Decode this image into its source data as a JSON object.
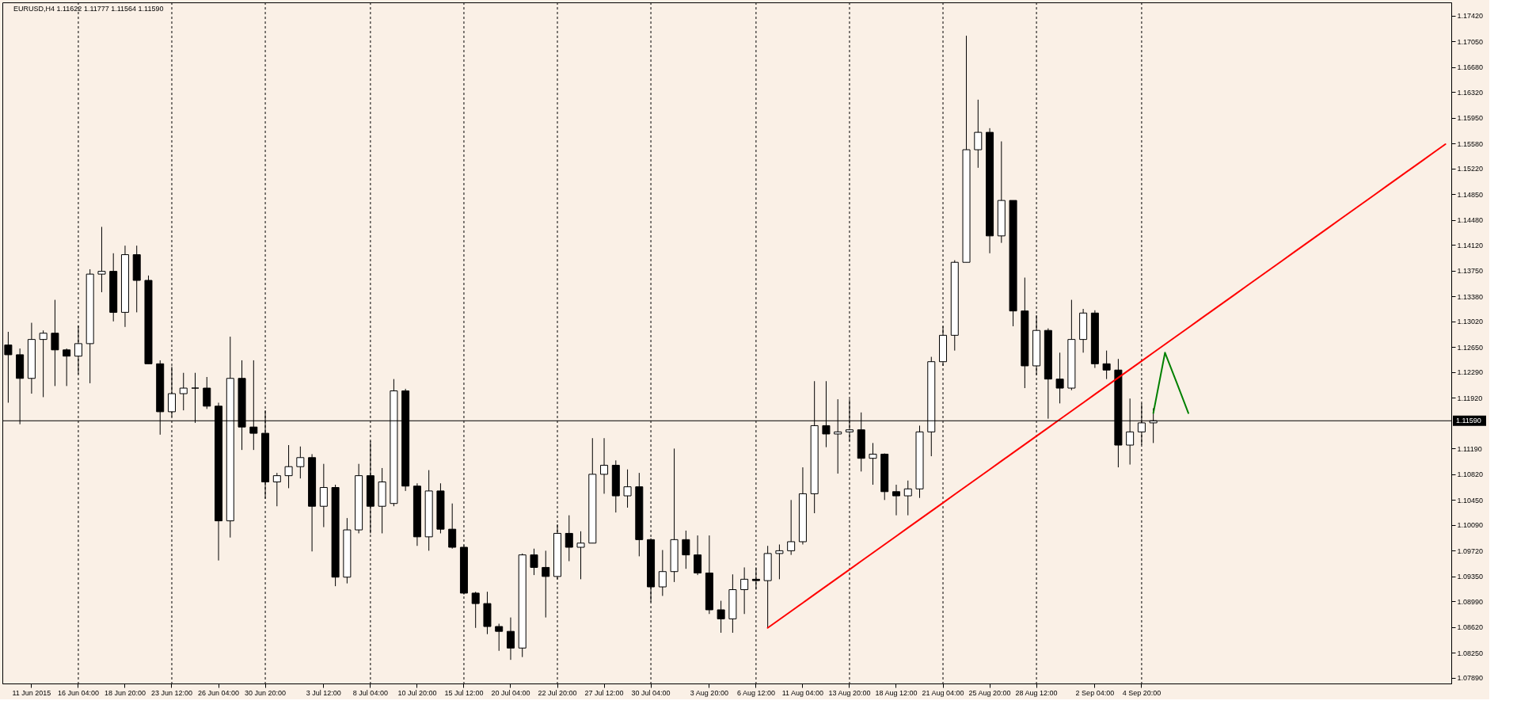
{
  "chart_data": {
    "type": "candlestick",
    "title": "EURUSD,H4  1.11622 1.11777 1.11564 1.11590",
    "categories": [
      null,
      null,
      "11 Jun 2015",
      null,
      null,
      null,
      "16 Jun 04:00",
      null,
      null,
      null,
      "18 Jun 20:00",
      null,
      null,
      null,
      "23 Jun 12:00",
      null,
      null,
      null,
      "26 Jun 04:00",
      null,
      null,
      null,
      "30 Jun 20:00",
      null,
      null,
      null,
      null,
      "3 Jul 12:00",
      null,
      null,
      null,
      "8 Jul 04:00",
      null,
      null,
      null,
      "10 Jul 20:00",
      null,
      null,
      null,
      "15 Jul 12:00",
      null,
      null,
      null,
      "20 Jul 04:00",
      null,
      null,
      null,
      "22 Jul 20:00",
      null,
      null,
      null,
      "27 Jul 12:00",
      null,
      null,
      null,
      "30 Jul 04:00",
      null,
      null,
      null,
      null,
      "3 Aug 20:00",
      null,
      null,
      null,
      "6 Aug 12:00",
      null,
      null,
      null,
      "11 Aug 04:00",
      null,
      null,
      null,
      "13 Aug 20:00",
      null,
      null,
      null,
      "18 Aug 12:00",
      null,
      null,
      null,
      "21 Aug 04:00",
      null,
      null,
      null,
      "25 Aug 20:00",
      null,
      null,
      null,
      "28 Aug 12:00",
      null,
      null,
      null,
      null,
      "2 Sep 04:00",
      null,
      null,
      null,
      "4 Sep 20:00",
      null,
      null,
      null,
      null,
      null,
      null,
      null,
      null,
      null,
      null,
      null,
      null,
      null,
      null,
      null,
      null,
      null,
      null,
      null,
      null,
      null,
      null,
      null,
      null,
      null,
      null
    ],
    "ohlc": [
      [
        1.1268,
        1.1287,
        1.1185,
        1.1254
      ],
      [
        1.1254,
        1.1263,
        1.1154,
        1.122
      ],
      [
        1.122,
        1.13,
        1.1198,
        1.1276
      ],
      [
        1.1276,
        1.1289,
        1.1193,
        1.1285
      ],
      [
        1.1285,
        1.1333,
        1.1209,
        1.1261
      ],
      [
        1.1261,
        1.1263,
        1.1209,
        1.1252
      ],
      [
        1.1252,
        1.1296,
        1.1226,
        1.127
      ],
      [
        1.127,
        1.1377,
        1.1213,
        1.137
      ],
      [
        1.137,
        1.1438,
        1.1344,
        1.1374
      ],
      [
        1.1374,
        1.14,
        1.1302,
        1.1315
      ],
      [
        1.1315,
        1.1411,
        1.1294,
        1.1398
      ],
      [
        1.1398,
        1.1411,
        1.1315,
        1.1361
      ],
      [
        1.1361,
        1.1368,
        1.1241,
        1.1241
      ],
      [
        1.1241,
        1.1246,
        1.1139,
        1.1172
      ],
      [
        1.1172,
        1.1237,
        1.1165,
        1.1198
      ],
      [
        1.1198,
        1.1228,
        1.1174,
        1.1206
      ],
      [
        1.1206,
        1.1228,
        1.1156,
        1.1206
      ],
      [
        1.1206,
        1.1222,
        1.1176,
        1.118
      ],
      [
        1.118,
        1.1185,
        1.0958,
        1.1015
      ],
      [
        1.1015,
        1.128,
        1.0991,
        1.122
      ],
      [
        1.122,
        1.1246,
        1.1117,
        1.115
      ],
      [
        1.115,
        1.1246,
        1.1117,
        1.1141
      ],
      [
        1.1141,
        1.1174,
        1.1047,
        1.1071
      ],
      [
        1.1071,
        1.1084,
        1.1036,
        1.108
      ],
      [
        1.108,
        1.1124,
        1.1062,
        1.1093
      ],
      [
        1.1093,
        1.1122,
        1.1076,
        1.1106
      ],
      [
        1.1106,
        1.1111,
        1.0971,
        1.1036
      ],
      [
        1.1036,
        1.1097,
        1.1006,
        1.1063
      ],
      [
        1.1063,
        1.1067,
        1.0921,
        1.0934
      ],
      [
        1.0934,
        1.1019,
        1.0925,
        1.1002
      ],
      [
        1.1002,
        1.1097,
        1.0997,
        1.108
      ],
      [
        1.108,
        1.113,
        1.0997,
        1.1036
      ],
      [
        1.1036,
        1.1091,
        1.0997,
        1.1071
      ],
      [
        1.104,
        1.1219,
        1.1036,
        1.1202
      ],
      [
        1.1202,
        1.1205,
        1.1058,
        1.1065
      ],
      [
        1.1065,
        1.1069,
        1.0979,
        1.0992
      ],
      [
        1.0992,
        1.1088,
        1.0972,
        1.1058
      ],
      [
        1.1058,
        1.1069,
        1.0997,
        1.1003
      ],
      [
        1.1003,
        1.104,
        1.0975,
        1.0977
      ],
      [
        1.0977,
        1.098,
        1.0909,
        1.0911
      ],
      [
        1.0911,
        1.0913,
        1.0861,
        1.0896
      ],
      [
        1.0896,
        1.0913,
        1.0852,
        1.0863
      ],
      [
        1.0863,
        1.0867,
        1.0828,
        1.0856
      ],
      [
        1.0856,
        1.0876,
        1.0815,
        1.0832
      ],
      [
        1.0832,
        1.0968,
        1.0819,
        1.0966
      ],
      [
        1.0966,
        1.0975,
        1.0937,
        1.0948
      ],
      [
        1.0948,
        1.0972,
        1.0876,
        1.0935
      ],
      [
        1.0935,
        1.101,
        1.0931,
        1.0997
      ],
      [
        1.0997,
        1.1023,
        1.0957,
        1.0977
      ],
      [
        1.0977,
        1.1,
        1.0931,
        1.0983
      ],
      [
        1.0983,
        1.1134,
        1.0983,
        1.1082
      ],
      [
        1.1082,
        1.1134,
        1.1054,
        1.1095
      ],
      [
        1.1095,
        1.1102,
        1.1027,
        1.1051
      ],
      [
        1.1051,
        1.1089,
        1.1034,
        1.1064
      ],
      [
        1.1064,
        1.1084,
        1.0964,
        1.0988
      ],
      [
        1.0988,
        1.099,
        1.0898,
        1.092
      ],
      [
        1.092,
        1.0973,
        1.0907,
        1.0942
      ],
      [
        1.0942,
        1.1119,
        1.0927,
        1.0988
      ],
      [
        1.0988,
        1.1001,
        1.0946,
        1.0966
      ],
      [
        1.0966,
        1.0994,
        1.0937,
        1.094
      ],
      [
        1.094,
        1.0994,
        1.0881,
        1.0887
      ],
      [
        1.0887,
        1.09,
        1.0854,
        1.0874
      ],
      [
        1.0874,
        1.0938,
        1.0854,
        1.0916
      ],
      [
        1.0916,
        1.0948,
        1.0881,
        1.0931
      ],
      [
        1.0931,
        1.0948,
        1.0916,
        1.0929
      ],
      [
        1.0929,
        1.0979,
        1.0861,
        1.0968
      ],
      [
        1.0968,
        1.0981,
        1.0931,
        1.0972
      ],
      [
        1.0972,
        1.1045,
        1.0966,
        1.0985
      ],
      [
        1.0985,
        1.1092,
        1.0981,
        1.1054
      ],
      [
        1.1054,
        1.1216,
        1.1026,
        1.1152
      ],
      [
        1.1152,
        1.1216,
        1.1121,
        1.114
      ],
      [
        1.114,
        1.119,
        1.1083,
        1.1143
      ],
      [
        1.1143,
        1.119,
        1.113,
        1.1146
      ],
      [
        1.1146,
        1.1171,
        1.1086,
        1.1105
      ],
      [
        1.1105,
        1.1127,
        1.1067,
        1.1111
      ],
      [
        1.1111,
        1.1112,
        1.1045,
        1.1057
      ],
      [
        1.1057,
        1.1067,
        1.1023,
        1.1051
      ],
      [
        1.1051,
        1.1073,
        1.1023,
        1.1061
      ],
      [
        1.1061,
        1.1152,
        1.1048,
        1.1143
      ],
      [
        1.1143,
        1.1251,
        1.1108,
        1.1244
      ],
      [
        1.1244,
        1.1295,
        1.1238,
        1.1282
      ],
      [
        1.1282,
        1.139,
        1.126,
        1.1387
      ],
      [
        1.1387,
        1.1713,
        1.1387,
        1.1549
      ],
      [
        1.1549,
        1.1621,
        1.1523,
        1.1574
      ],
      [
        1.1574,
        1.158,
        1.14,
        1.1425
      ],
      [
        1.1425,
        1.1561,
        1.1415,
        1.1476
      ],
      [
        1.1476,
        1.1476,
        1.1295,
        1.1317
      ],
      [
        1.1317,
        1.1365,
        1.1206,
        1.1238
      ],
      [
        1.1238,
        1.1311,
        1.1225,
        1.1289
      ],
      [
        1.1289,
        1.1292,
        1.1162,
        1.1219
      ],
      [
        1.1219,
        1.1257,
        1.1184,
        1.1206
      ],
      [
        1.1206,
        1.1333,
        1.1203,
        1.1276
      ],
      [
        1.1276,
        1.132,
        1.1257,
        1.1314
      ],
      [
        1.1314,
        1.1318,
        1.1235,
        1.1241
      ],
      [
        1.1241,
        1.126,
        1.1219,
        1.1232
      ],
      [
        1.1232,
        1.1248,
        1.1092,
        1.1124
      ],
      [
        1.1124,
        1.1191,
        1.1096,
        1.1143
      ],
      [
        1.1143,
        1.1184,
        1.1124,
        1.1156
      ],
      [
        1.1156,
        1.1177,
        1.1127,
        1.1159
      ],
      null,
      null,
      null,
      null,
      null,
      null,
      null,
      null,
      null,
      null,
      null,
      null,
      null,
      null,
      null,
      null,
      null,
      null,
      null,
      null,
      null,
      null,
      null,
      null,
      null
    ],
    "ylim": [
      1.0781,
      1.1761
    ],
    "yticks": [
      {
        "value": 1.0789,
        "label": "1.07890"
      },
      {
        "value": 1.0825,
        "label": "1.08250"
      },
      {
        "value": 1.0862,
        "label": "1.08620"
      },
      {
        "value": 1.0899,
        "label": "1.08990"
      },
      {
        "value": 1.0935,
        "label": "1.09350"
      },
      {
        "value": 1.0972,
        "label": "1.09720"
      },
      {
        "value": 1.1009,
        "label": "1.10090"
      },
      {
        "value": 1.1045,
        "label": "1.10450"
      },
      {
        "value": 1.1082,
        "label": "1.10820"
      },
      {
        "value": 1.1119,
        "label": "1.11190"
      },
      {
        "value": 1.1192,
        "label": "1.11920"
      },
      {
        "value": 1.1229,
        "label": "1.12290"
      },
      {
        "value": 1.1265,
        "label": "1.12650"
      },
      {
        "value": 1.1302,
        "label": "1.13020"
      },
      {
        "value": 1.1338,
        "label": "1.13380"
      },
      {
        "value": 1.1375,
        "label": "1.13750"
      },
      {
        "value": 1.1412,
        "label": "1.14120"
      },
      {
        "value": 1.1448,
        "label": "1.14480"
      },
      {
        "value": 1.1485,
        "label": "1.14850"
      },
      {
        "value": 1.1522,
        "label": "1.15220"
      },
      {
        "value": 1.1558,
        "label": "1.15580"
      },
      {
        "value": 1.1595,
        "label": "1.15950"
      },
      {
        "value": 1.1632,
        "label": "1.16320"
      },
      {
        "value": 1.1668,
        "label": "1.16680"
      },
      {
        "value": 1.1705,
        "label": "1.17050"
      },
      {
        "value": 1.1742,
        "label": "1.17420"
      }
    ],
    "ref_lines": [
      {
        "axis": "y",
        "value": 1.1159,
        "label": "1.11590",
        "color": "#000000"
      }
    ],
    "series": [
      {
        "type": "line",
        "color": "#ff0000",
        "values": [
          null,
          null,
          null,
          null,
          null,
          null,
          null,
          null,
          null,
          null,
          null,
          null,
          null,
          null,
          null,
          null,
          null,
          null,
          null,
          null,
          null,
          null,
          null,
          null,
          null,
          null,
          null,
          null,
          null,
          null,
          null,
          null,
          null,
          null,
          null,
          null,
          null,
          null,
          null,
          null,
          null,
          null,
          null,
          null,
          null,
          null,
          null,
          null,
          null,
          null,
          null,
          null,
          null,
          null,
          null,
          null,
          null,
          null,
          null,
          null,
          null,
          null,
          null,
          null,
          null,
          1.0861,
          1.0873,
          1.0885,
          1.0897,
          1.0909,
          1.0921,
          1.0933,
          1.0945,
          1.0957,
          1.0969,
          1.0981,
          1.0993,
          1.1005,
          1.1017,
          1.1029,
          1.1041,
          1.1053,
          1.1065,
          1.1077,
          1.1089,
          1.1101,
          1.1113,
          1.1125,
          1.1137,
          1.1149,
          1.1161,
          1.1173,
          1.1185,
          1.1197,
          1.1209,
          1.1221,
          1.1233,
          1.1245,
          1.1257,
          1.1269,
          1.1281,
          1.1293,
          1.1305,
          1.1317,
          1.1329,
          1.1341,
          1.1353,
          1.1365,
          1.1377,
          1.1389,
          1.1401,
          1.1413,
          1.1425,
          1.1437,
          1.1449,
          1.1461,
          1.1473,
          1.1485,
          1.1497,
          1.1509,
          1.1521,
          1.1533,
          1.1545,
          1.1557
        ]
      },
      {
        "type": "line",
        "color": "#008000",
        "values": [
          null,
          null,
          null,
          null,
          null,
          null,
          null,
          null,
          null,
          null,
          null,
          null,
          null,
          null,
          null,
          null,
          null,
          null,
          null,
          null,
          null,
          null,
          null,
          null,
          null,
          null,
          null,
          null,
          null,
          null,
          null,
          null,
          null,
          null,
          null,
          null,
          null,
          null,
          null,
          null,
          null,
          null,
          null,
          null,
          null,
          null,
          null,
          null,
          null,
          null,
          null,
          null,
          null,
          null,
          null,
          null,
          null,
          null,
          null,
          null,
          null,
          null,
          null,
          null,
          null,
          null,
          null,
          null,
          null,
          null,
          null,
          null,
          null,
          null,
          null,
          null,
          null,
          null,
          null,
          null,
          null,
          null,
          null,
          null,
          null,
          null,
          null,
          null,
          null,
          null,
          null,
          null,
          null,
          null,
          null,
          null,
          null,
          null,
          1.117,
          1.1257,
          1.1214,
          1.117,
          null,
          null,
          null,
          null,
          null,
          null,
          null,
          null,
          null,
          null,
          null,
          null,
          null,
          null,
          null,
          null,
          null,
          null,
          null,
          null,
          null,
          null
        ]
      }
    ],
    "grid": "x"
  }
}
